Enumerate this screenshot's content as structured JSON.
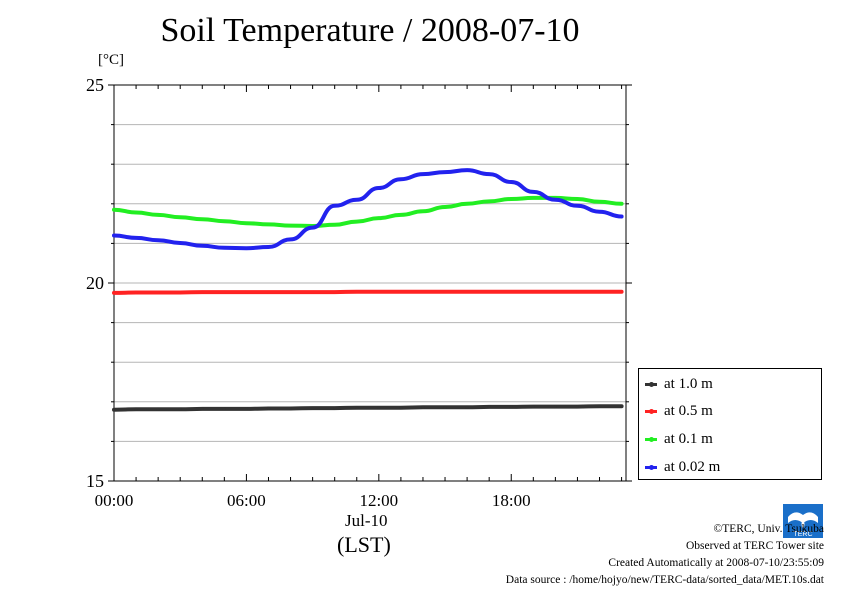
{
  "chart_data": {
    "type": "line",
    "title": "Soil Temperature / 2008-07-10",
    "ylabel": "[°C]",
    "xlabel_date": "Jul-10",
    "xlabel_tz": "(LST)",
    "x_ticks": [
      "00:00",
      "06:00",
      "12:00",
      "18:00"
    ],
    "x_tick_hours": [
      0,
      6,
      12,
      18
    ],
    "y_ticks": [
      "15",
      "20",
      "25"
    ],
    "y_tick_values": [
      15,
      20,
      25
    ],
    "xlim": [
      0,
      23.2
    ],
    "ylim": [
      15,
      25
    ],
    "grid": true,
    "legend_position": "bottom-right outside",
    "x_hours": [
      0,
      1,
      2,
      3,
      4,
      5,
      6,
      7,
      8,
      9,
      10,
      11,
      12,
      13,
      14,
      15,
      16,
      17,
      18,
      19,
      20,
      21,
      22,
      23
    ],
    "series": [
      {
        "name": "at 1.0 m",
        "color": "#333333",
        "values": [
          16.8,
          16.81,
          16.81,
          16.81,
          16.82,
          16.82,
          16.82,
          16.83,
          16.83,
          16.84,
          16.84,
          16.85,
          16.85,
          16.85,
          16.86,
          16.86,
          16.86,
          16.87,
          16.87,
          16.88,
          16.88,
          16.88,
          16.89,
          16.89
        ]
      },
      {
        "name": "at 0.5 m",
        "color": "#ff2222",
        "values": [
          19.75,
          19.76,
          19.76,
          19.76,
          19.77,
          19.77,
          19.77,
          19.77,
          19.77,
          19.77,
          19.77,
          19.78,
          19.78,
          19.78,
          19.78,
          19.78,
          19.78,
          19.78,
          19.78,
          19.78,
          19.78,
          19.78,
          19.78,
          19.78
        ]
      },
      {
        "name": "at 0.1 m",
        "color": "#22ee22",
        "values": [
          21.85,
          21.78,
          21.72,
          21.66,
          21.61,
          21.56,
          21.51,
          21.48,
          21.45,
          21.44,
          21.47,
          21.55,
          21.64,
          21.72,
          21.81,
          21.92,
          22.0,
          22.06,
          22.12,
          22.15,
          22.15,
          22.12,
          22.05,
          22.0
        ]
      },
      {
        "name": "at 0.02 m",
        "color": "#2222ee",
        "values": [
          21.2,
          21.14,
          21.08,
          21.01,
          20.94,
          20.89,
          20.88,
          20.91,
          21.1,
          21.4,
          21.95,
          22.1,
          22.4,
          22.62,
          22.75,
          22.8,
          22.85,
          22.75,
          22.55,
          22.3,
          22.1,
          21.95,
          21.8,
          21.68
        ]
      }
    ]
  },
  "credits": {
    "copyright": "©TERC, Univ. Tsukuba",
    "site": "Observed at TERC Tower site",
    "created": "Created Automatically at 2008-07-10/23:55:09",
    "source": "Data source : /home/hojyo/new/TERC-data/sorted_data/MET.10s.dat"
  },
  "logo": {
    "text": "TERC",
    "color": "#1a6fc9",
    "icon": "terc-logo-icon"
  }
}
